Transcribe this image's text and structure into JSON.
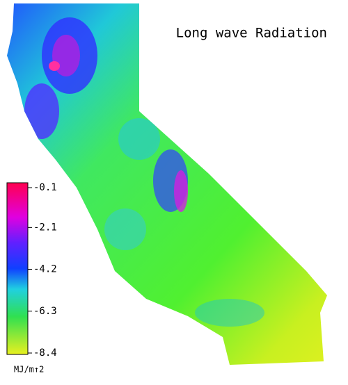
{
  "title": "Long wave Radiation",
  "colorbar": {
    "range": [
      -8.4,
      -0.1
    ],
    "ticks": [
      -0.1,
      -2.1,
      -4.2,
      -6.3,
      -8.4
    ],
    "unit": "MJ/m↑2"
  }
}
